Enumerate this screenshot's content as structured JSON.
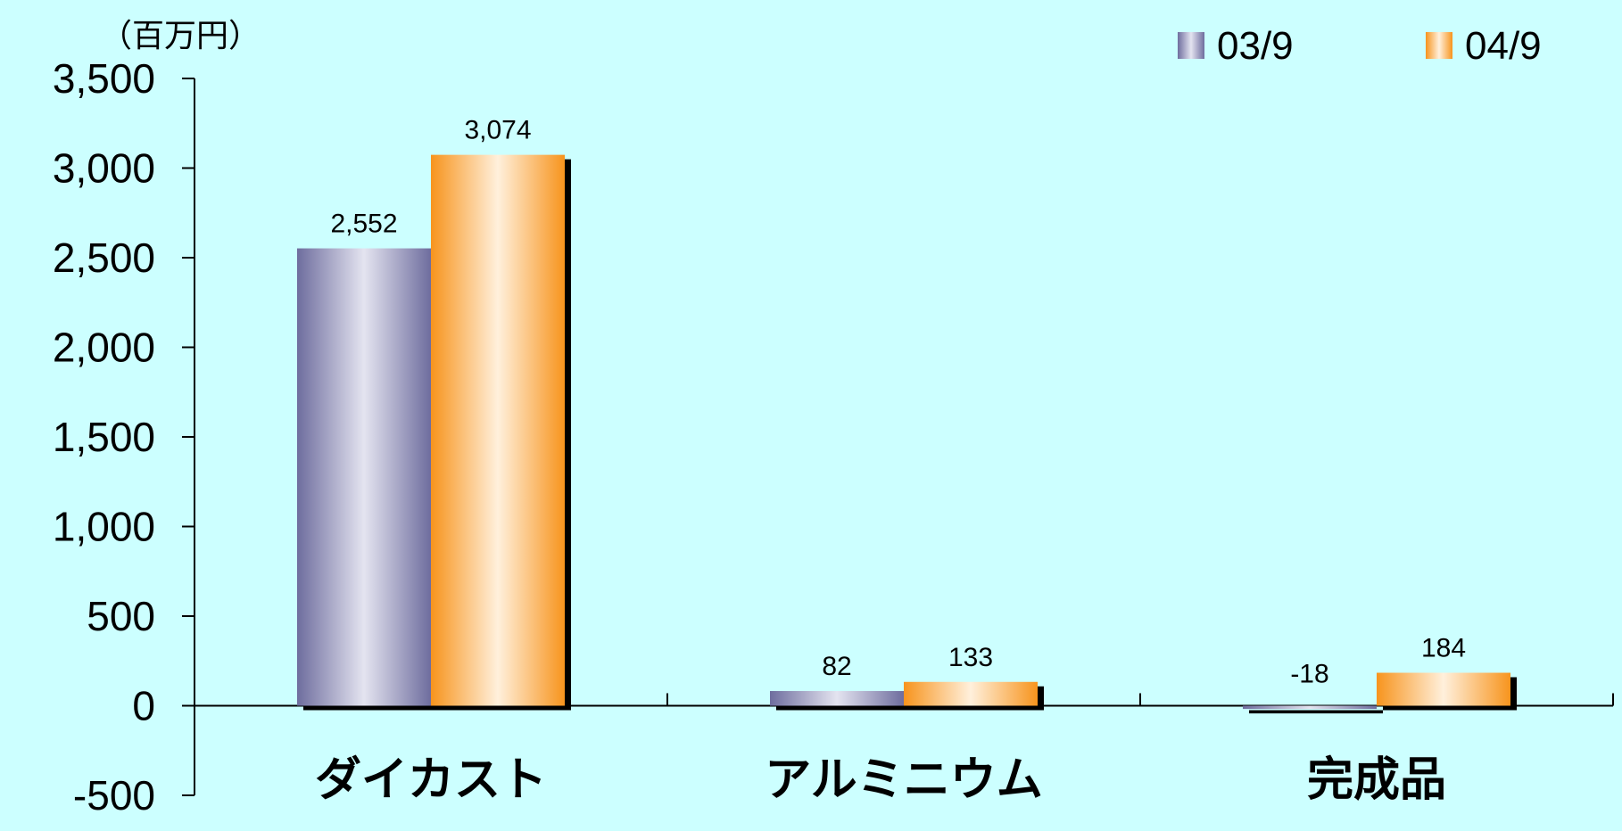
{
  "chart_data": {
    "type": "bar",
    "title": "",
    "unit_label": "（百万円）",
    "xlabel": "",
    "ylabel": "",
    "ylim": [
      -500,
      3500
    ],
    "yticks": [
      -500,
      0,
      500,
      1000,
      1500,
      2000,
      2500,
      3000,
      3500
    ],
    "ytick_labels": [
      "-500",
      "0",
      "500",
      "1,000",
      "1,500",
      "2,000",
      "2,500",
      "3,000",
      "3,500"
    ],
    "categories": [
      "ダイカスト",
      "アルミニウム",
      "完成品"
    ],
    "series": [
      {
        "name": "03/9",
        "values": [
          2552,
          82,
          -18
        ],
        "value_labels": [
          "2,552",
          "82",
          "-18"
        ],
        "color": "#7b7aa8"
      },
      {
        "name": "04/9",
        "values": [
          3074,
          133,
          184
        ],
        "value_labels": [
          "3,074",
          "133",
          "184"
        ],
        "color": "#f79a22"
      }
    ],
    "legend_position": "top-right",
    "background_color": "#ccffff",
    "grid": false
  }
}
